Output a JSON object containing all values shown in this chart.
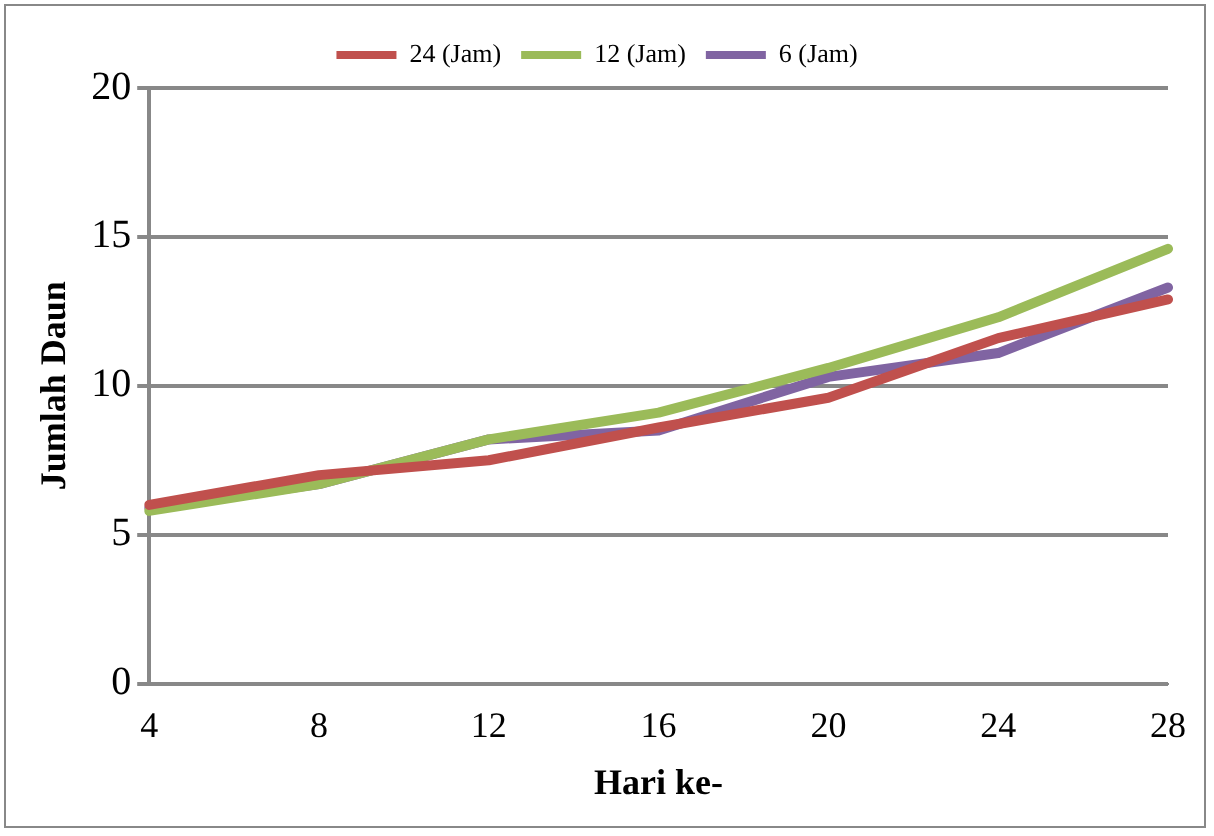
{
  "chart_data": {
    "type": "line",
    "xlabel": "Hari ke-",
    "ylabel": "Jumlah Daun",
    "categories": [
      "4",
      "8",
      "12",
      "16",
      "20",
      "24",
      "28"
    ],
    "series": [
      {
        "name": "24 (Jam)",
        "color": "#c0504d",
        "values": [
          6.0,
          7.0,
          7.5,
          8.6,
          9.6,
          11.6,
          12.9
        ]
      },
      {
        "name": "12 (Jam)",
        "color": "#9bbb59",
        "values": [
          5.8,
          6.7,
          8.2,
          9.1,
          10.6,
          12.3,
          14.6
        ]
      },
      {
        "name": "6 (Jam)",
        "color": "#8064a2",
        "values": [
          5.9,
          6.7,
          8.2,
          8.5,
          10.3,
          11.1,
          13.3
        ]
      }
    ],
    "ylim": [
      0,
      20
    ],
    "yticks": [
      0,
      5,
      10,
      15,
      20
    ],
    "grid": "y",
    "legend": "top",
    "marker": "none",
    "line_style": "solid"
  }
}
